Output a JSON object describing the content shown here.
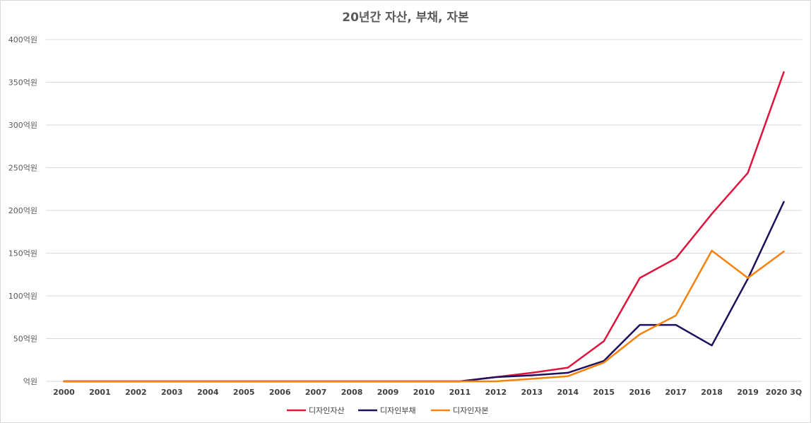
{
  "chart_data": {
    "type": "line",
    "title": "20년간 자산, 부채, 자본",
    "xlabel": "",
    "ylabel": "",
    "categories": [
      "2000",
      "2001",
      "2002",
      "2003",
      "2004",
      "2005",
      "2006",
      "2007",
      "2008",
      "2009",
      "2010",
      "2011",
      "2012",
      "2013",
      "2014",
      "2015",
      "2016",
      "2017",
      "2018",
      "2019",
      "2020 3Q"
    ],
    "y_ticks": [
      "억원",
      "50억원",
      "100억원",
      "150억원",
      "200억원",
      "250억원",
      "300억원",
      "350억원",
      "400억원"
    ],
    "ylim": [
      0,
      400
    ],
    "grid": true,
    "legend_position": "bottom",
    "series": [
      {
        "name": "디자인자산",
        "color": "#e0143c",
        "values": [
          0,
          0,
          0,
          0,
          0,
          0,
          0,
          0,
          0,
          0,
          0,
          0,
          5,
          10,
          16,
          47,
          121,
          144,
          196,
          244,
          362
        ]
      },
      {
        "name": "디자인부채",
        "color": "#1f0f5c",
        "values": [
          0,
          0,
          0,
          0,
          0,
          0,
          0,
          0,
          0,
          0,
          0,
          0,
          5,
          7,
          10,
          24,
          66,
          66,
          42,
          120,
          210
        ]
      },
      {
        "name": "디자인자본",
        "color": "#f5820a",
        "values": [
          0,
          0,
          0,
          0,
          0,
          0,
          0,
          0,
          0,
          0,
          0,
          0,
          0,
          3,
          6,
          22,
          55,
          77,
          153,
          121,
          152
        ]
      }
    ]
  }
}
